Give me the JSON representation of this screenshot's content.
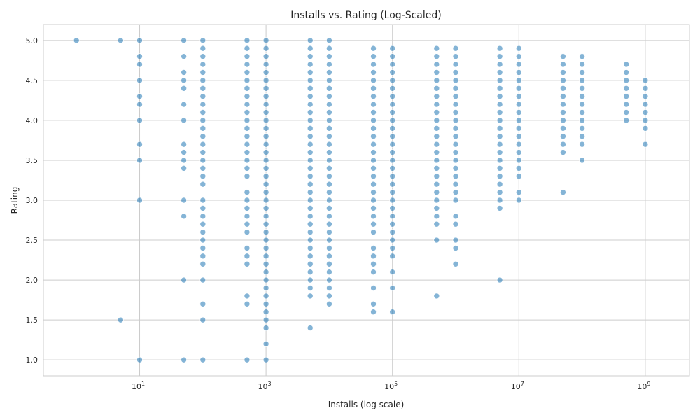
{
  "chart_data": {
    "type": "scatter",
    "title": "Installs vs. Rating (Log-Scaled)",
    "xlabel": "Installs (log scale)",
    "ylabel": "Rating",
    "x_scale": "log",
    "xlim": [
      0.3,
      5000000000
    ],
    "ylim": [
      0.8,
      5.2
    ],
    "x_ticks": [
      {
        "value": 10,
        "base": "10",
        "exp": "1"
      },
      {
        "value": 1000,
        "base": "10",
        "exp": "3"
      },
      {
        "value": 100000,
        "base": "10",
        "exp": "5"
      },
      {
        "value": 10000000,
        "base": "10",
        "exp": "7"
      },
      {
        "value": 1000000000,
        "base": "10",
        "exp": "9"
      }
    ],
    "y_ticks": [
      "1.0",
      "1.5",
      "2.0",
      "2.5",
      "3.0",
      "3.5",
      "4.0",
      "4.5",
      "5.0"
    ],
    "grid": true,
    "marker_color": "#1f77b4",
    "marker_alpha": 0.55,
    "points_by_installs": [
      {
        "x": 1,
        "ratings": [
          5.0
        ]
      },
      {
        "x": 5,
        "ratings": [
          5.0,
          1.5
        ]
      },
      {
        "x": 10,
        "ratings": [
          5.0,
          4.8,
          4.7,
          4.5,
          4.3,
          4.2,
          4.0,
          3.7,
          3.5,
          3.0,
          1.0
        ]
      },
      {
        "x": 50,
        "ratings": [
          5.0,
          4.8,
          4.6,
          4.5,
          4.4,
          4.2,
          4.0,
          3.7,
          3.6,
          3.5,
          3.4,
          3.0,
          2.8,
          2.0,
          1.0
        ]
      },
      {
        "x": 100,
        "ratings": [
          5.0,
          4.9,
          4.8,
          4.7,
          4.6,
          4.5,
          4.4,
          4.3,
          4.2,
          4.1,
          4.0,
          3.9,
          3.8,
          3.7,
          3.6,
          3.5,
          3.4,
          3.3,
          3.2,
          3.0,
          2.9,
          2.8,
          2.7,
          2.6,
          2.5,
          2.4,
          2.3,
          2.2,
          2.0,
          1.7,
          1.5,
          1.0
        ]
      },
      {
        "x": 500,
        "ratings": [
          5.0,
          4.9,
          4.8,
          4.7,
          4.6,
          4.5,
          4.4,
          4.3,
          4.2,
          4.1,
          4.0,
          3.9,
          3.8,
          3.7,
          3.6,
          3.5,
          3.4,
          3.3,
          3.1,
          3.0,
          2.9,
          2.8,
          2.7,
          2.6,
          2.4,
          2.3,
          2.2,
          1.8,
          1.7,
          1.0
        ]
      },
      {
        "x": 1000,
        "ratings": [
          5.0,
          4.9,
          4.8,
          4.7,
          4.6,
          4.5,
          4.4,
          4.3,
          4.2,
          4.1,
          4.0,
          3.9,
          3.8,
          3.7,
          3.6,
          3.5,
          3.4,
          3.3,
          3.2,
          3.1,
          3.0,
          2.9,
          2.8,
          2.7,
          2.6,
          2.5,
          2.4,
          2.3,
          2.2,
          2.1,
          2.0,
          1.9,
          1.8,
          1.7,
          1.6,
          1.5,
          1.4,
          1.2,
          1.0
        ]
      },
      {
        "x": 5000,
        "ratings": [
          5.0,
          4.9,
          4.8,
          4.7,
          4.6,
          4.5,
          4.4,
          4.3,
          4.2,
          4.1,
          4.0,
          3.9,
          3.8,
          3.7,
          3.6,
          3.5,
          3.4,
          3.3,
          3.2,
          3.1,
          3.0,
          2.9,
          2.8,
          2.7,
          2.6,
          2.5,
          2.4,
          2.3,
          2.2,
          2.1,
          2.0,
          1.9,
          1.8,
          1.4
        ]
      },
      {
        "x": 10000,
        "ratings": [
          5.0,
          4.9,
          4.8,
          4.7,
          4.6,
          4.5,
          4.4,
          4.3,
          4.2,
          4.1,
          4.0,
          3.9,
          3.8,
          3.7,
          3.6,
          3.5,
          3.4,
          3.3,
          3.2,
          3.1,
          3.0,
          2.9,
          2.8,
          2.7,
          2.6,
          2.5,
          2.4,
          2.3,
          2.2,
          2.1,
          2.0,
          1.9,
          1.8,
          1.7
        ]
      },
      {
        "x": 50000,
        "ratings": [
          4.9,
          4.8,
          4.7,
          4.6,
          4.5,
          4.4,
          4.3,
          4.2,
          4.1,
          4.0,
          3.9,
          3.8,
          3.7,
          3.6,
          3.5,
          3.4,
          3.3,
          3.2,
          3.1,
          3.0,
          2.9,
          2.8,
          2.7,
          2.6,
          2.4,
          2.3,
          2.2,
          2.1,
          1.9,
          1.7,
          1.6
        ]
      },
      {
        "x": 100000,
        "ratings": [
          4.9,
          4.8,
          4.7,
          4.6,
          4.5,
          4.4,
          4.3,
          4.2,
          4.1,
          4.0,
          3.9,
          3.8,
          3.7,
          3.6,
          3.5,
          3.4,
          3.3,
          3.2,
          3.1,
          3.0,
          2.9,
          2.8,
          2.7,
          2.6,
          2.5,
          2.4,
          2.3,
          2.1,
          1.9,
          1.6
        ]
      },
      {
        "x": 500000,
        "ratings": [
          4.9,
          4.8,
          4.7,
          4.6,
          4.5,
          4.4,
          4.3,
          4.2,
          4.1,
          4.0,
          3.9,
          3.8,
          3.7,
          3.6,
          3.5,
          3.4,
          3.3,
          3.2,
          3.1,
          3.0,
          2.9,
          2.8,
          2.7,
          2.5,
          1.8
        ]
      },
      {
        "x": 1000000,
        "ratings": [
          4.9,
          4.8,
          4.7,
          4.6,
          4.5,
          4.4,
          4.3,
          4.2,
          4.1,
          4.0,
          3.9,
          3.8,
          3.7,
          3.6,
          3.5,
          3.4,
          3.3,
          3.2,
          3.1,
          3.0,
          2.8,
          2.7,
          2.5,
          2.4,
          2.2
        ]
      },
      {
        "x": 5000000,
        "ratings": [
          4.9,
          4.8,
          4.7,
          4.6,
          4.5,
          4.4,
          4.3,
          4.2,
          4.1,
          4.0,
          3.9,
          3.8,
          3.7,
          3.6,
          3.5,
          3.4,
          3.3,
          3.2,
          3.1,
          3.0,
          2.9,
          2.0
        ]
      },
      {
        "x": 10000000,
        "ratings": [
          4.9,
          4.8,
          4.7,
          4.6,
          4.5,
          4.4,
          4.3,
          4.2,
          4.1,
          4.0,
          3.9,
          3.8,
          3.7,
          3.6,
          3.5,
          3.4,
          3.3,
          3.1,
          3.0
        ]
      },
      {
        "x": 50000000,
        "ratings": [
          4.8,
          4.7,
          4.6,
          4.5,
          4.4,
          4.3,
          4.2,
          4.1,
          4.0,
          3.9,
          3.8,
          3.7,
          3.6,
          3.1
        ]
      },
      {
        "x": 100000000,
        "ratings": [
          4.8,
          4.7,
          4.6,
          4.5,
          4.4,
          4.3,
          4.2,
          4.1,
          4.0,
          3.9,
          3.8,
          3.7,
          3.5
        ]
      },
      {
        "x": 500000000,
        "ratings": [
          4.7,
          4.6,
          4.5,
          4.4,
          4.3,
          4.2,
          4.1,
          4.0
        ]
      },
      {
        "x": 1000000000,
        "ratings": [
          4.5,
          4.4,
          4.3,
          4.2,
          4.1,
          4.0,
          3.9,
          3.7
        ]
      }
    ]
  }
}
